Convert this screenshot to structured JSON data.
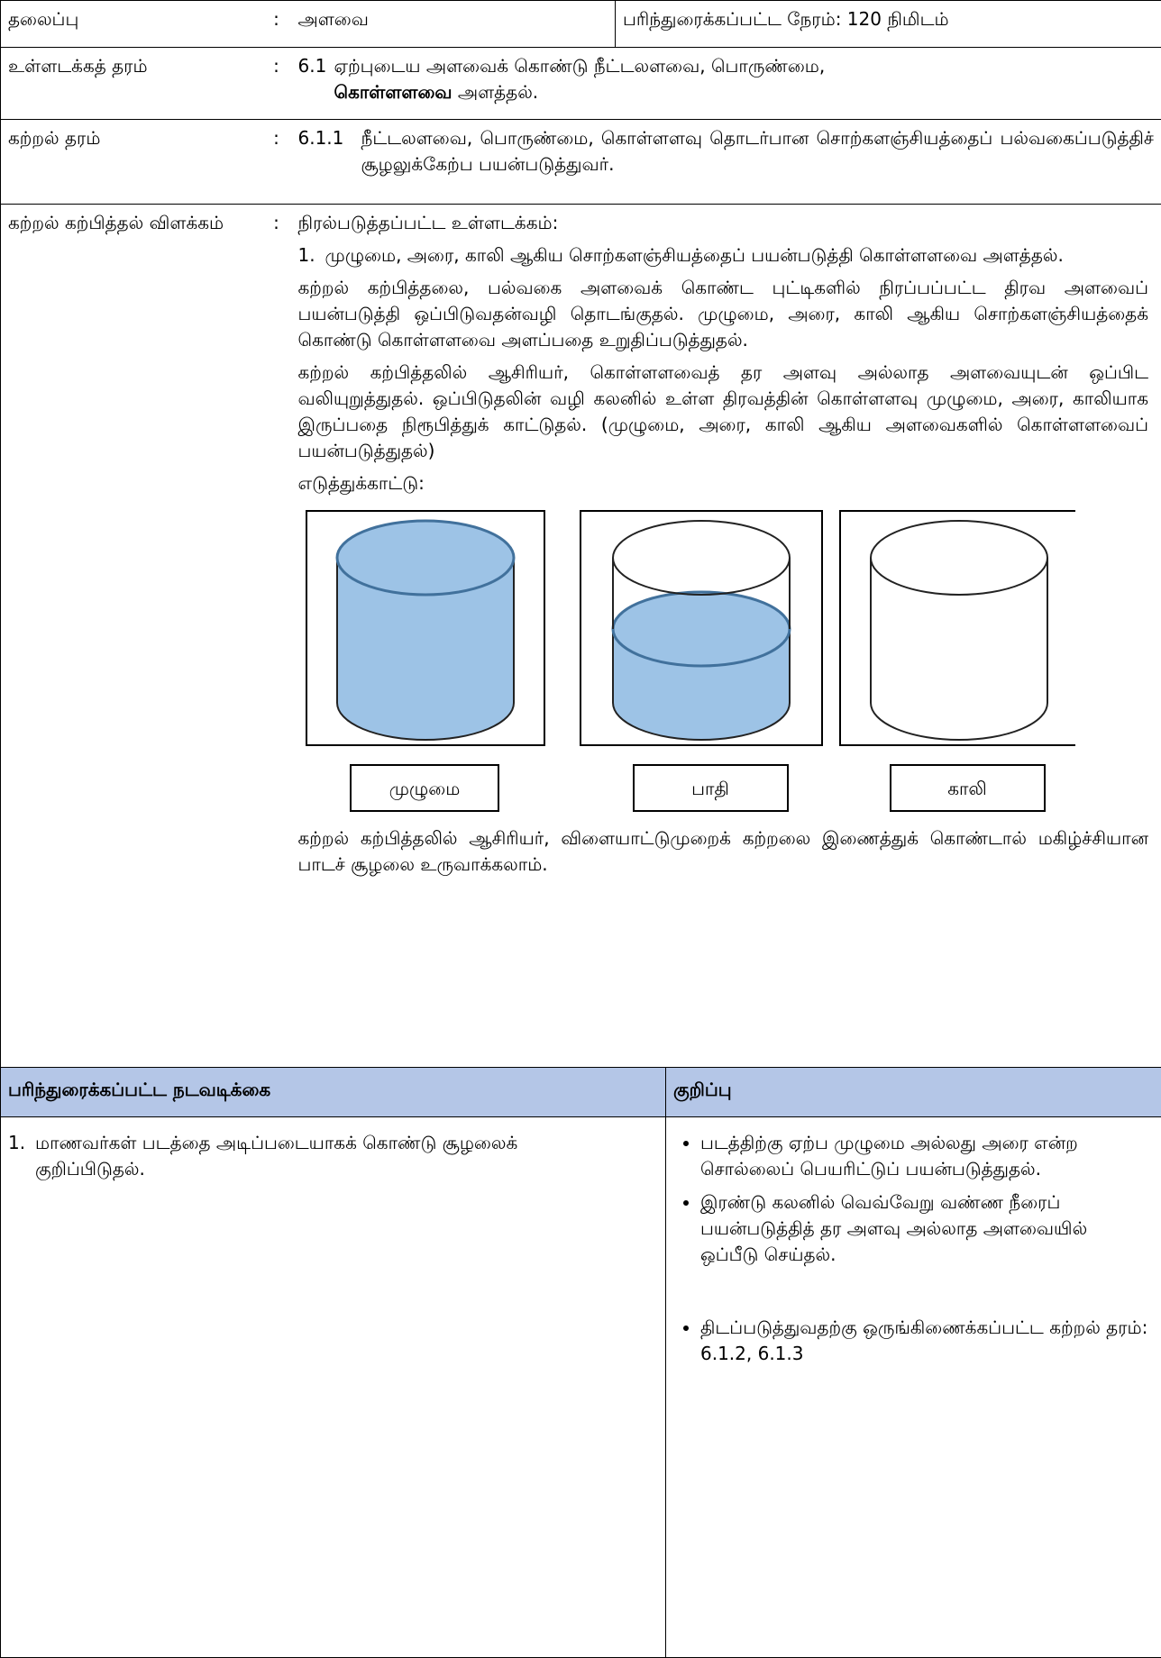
{
  "header": {
    "topic_label": "தலைப்பு",
    "colon": ":",
    "topic": "அளவை",
    "time": "பரிந்துரைக்கப்பட்ட நேரம்: 120 நிமிடம்"
  },
  "content_standard": {
    "label": "உள்ளடக்கத் தரம்",
    "code": "6.1",
    "text": "ஏற்புடைய அளவைக் கொண்டு நீட்டலளவை, பொருண்மை,",
    "bold": "கொள்ளளவை",
    "text_end": "அளத்தல்."
  },
  "learning_standard": {
    "label": "கற்றல் தரம்",
    "code": "6.1.1",
    "text": "நீட்டலளவை, பொருண்மை, கொள்ளளவு தொடர்பான சொற்களஞ்சியத்தைப் பல்வகைப்படுத்திச் சூழலுக்கேற்ப பயன்படுத்துவர்."
  },
  "explanation": {
    "label": "கற்றல் கற்பித்தல் விளக்கம்",
    "heading": "நிரல்படுத்தப்பட்ட உள்ளடக்கம்:",
    "item_number": "1.",
    "item": "முழுமை, அரை, காலி ஆகிய சொற்களஞ்சியத்தைப் பயன்படுத்தி கொள்ளளவை அளத்தல்.",
    "paragraphs": [
      "கற்றல் கற்பித்தலை, பல்வகை அளவைக் கொண்ட புட்டிகளில் நிரப்பப்பட்ட திரவ அளவைப் பயன்படுத்தி ஒப்பிடுவதன்வழி தொடங்குதல். முழுமை, அரை, காலி ஆகிய சொற்களஞ்சியத்தைக் கொண்டு கொள்ளளவை அளப்பதை உறுதிப்படுத்துதல்.",
      "கற்றல் கற்பித்தலில் ஆசிரியர், கொள்ளளவைத் தர அளவு அல்லாத அளவையுடன் ஒப்பிட வலியுறுத்துதல். ஒப்பிடுதலின் வழி கலனில் உள்ள திரவத்தின் கொள்ளளவு முழுமை, அரை, காலியாக இருப்பதை நிரூபித்துக் காட்டுதல். (முழுமை, அரை, காலி ஆகிய அளவைகளில் கொள்ளளவைப் பயன்படுத்துதல்)"
    ],
    "example": "எடுத்துக்காட்டு:",
    "figure_labels": [
      "முழுமை",
      "பாதி",
      "காலி"
    ],
    "closing": "கற்றல் கற்பித்தலில் ஆசிரியர், விளையாட்டுமுறைக் கற்றலை இணைத்துக் கொண்டால் மகிழ்ச்சியான பாடச் சூழலை உருவாக்கலாம்."
  },
  "activities": {
    "header": "பரிந்துரைக்கப்பட்ட நடவடிக்கை",
    "note_header": "குறிப்பு",
    "item_number": "1.",
    "item": "மாணவர்கள் படத்தை அடிப்படையாகக் கொண்டு சூழலைக் குறிப்பிடுதல்.",
    "notes": [
      "படத்திற்கு ஏற்ப முழுமை அல்லது அரை என்ற சொல்லைப் பெயரிட்டுப் பயன்படுத்துதல்.",
      "இரண்டு கலனில் வெவ்வேறு வண்ண நீரைப் பயன்படுத்தித் தர அளவு அல்லாத அளவையில் ஒப்பீடு செய்தல்.",
      "திடப்படுத்துவதற்கு ஒருங்கிணைக்கப்பட்ட கற்றல் தரம்: 6.1.2, 6.1.3"
    ]
  }
}
